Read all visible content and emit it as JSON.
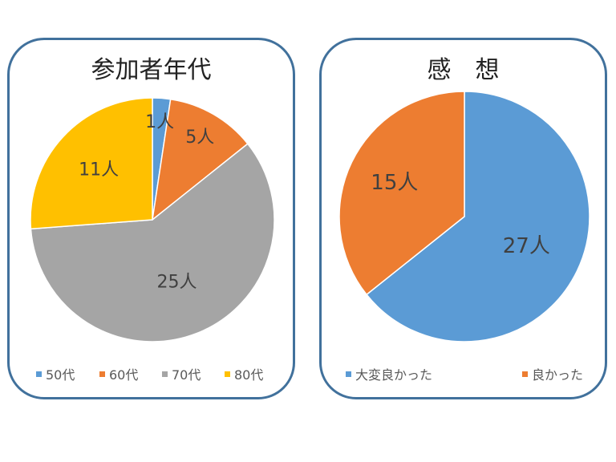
{
  "chart_data": [
    {
      "type": "pie",
      "title": "参加者年代",
      "categories": [
        "50代",
        "60代",
        "70代",
        "80代"
      ],
      "values": [
        1,
        5,
        25,
        11
      ],
      "data_labels": [
        "1人",
        "5人",
        "25人",
        "11人"
      ],
      "colors": [
        "#5b9bd5",
        "#ed7d31",
        "#a5a5a5",
        "#ffc000"
      ],
      "legend": "bottom"
    },
    {
      "type": "pie",
      "title": "感　想",
      "categories": [
        "大変良かった",
        "良かった"
      ],
      "values": [
        27,
        15
      ],
      "data_labels": [
        "27人",
        "15人"
      ],
      "colors": [
        "#5b9bd5",
        "#ed7d31"
      ],
      "legend": "bottom"
    }
  ],
  "colors": {
    "border": "#41719c",
    "label": "#404040",
    "legend_text": "#595959"
  }
}
